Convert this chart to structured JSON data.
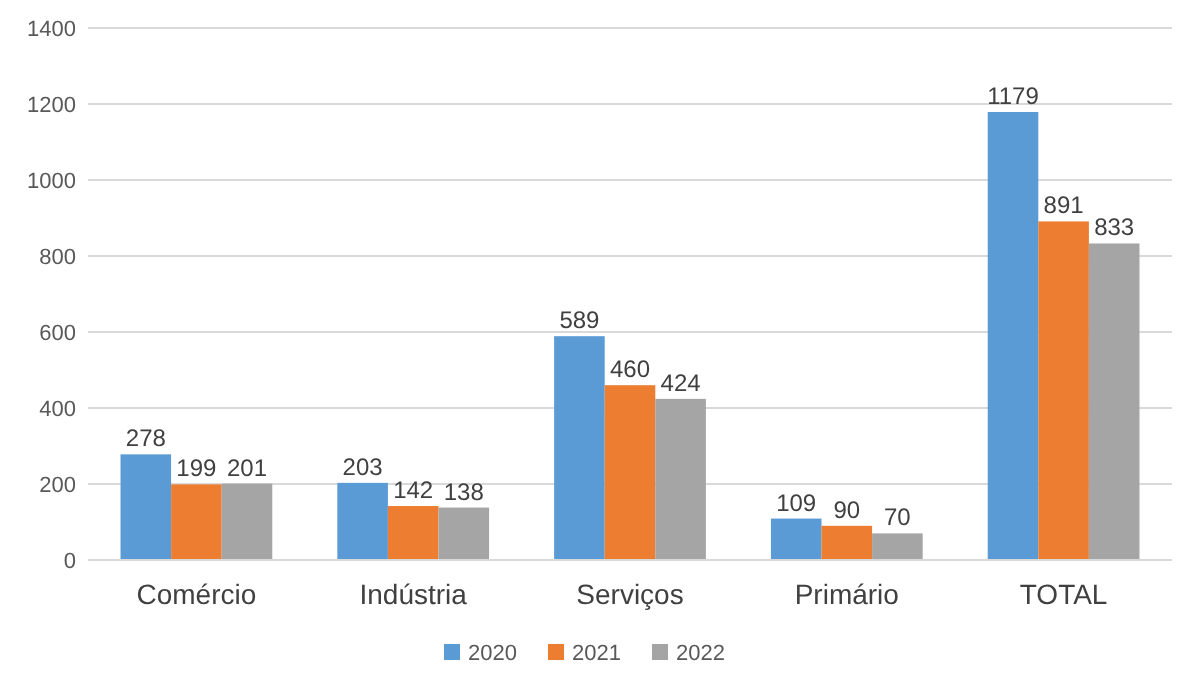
{
  "chart_data": {
    "type": "bar",
    "categories": [
      "Comércio",
      "Indústria",
      "Serviços",
      "Primário",
      "TOTAL"
    ],
    "series": [
      {
        "name": "2020",
        "color": "#5b9bd5",
        "values": [
          278,
          203,
          589,
          109,
          1179
        ]
      },
      {
        "name": "2021",
        "color": "#ed7d31",
        "values": [
          199,
          142,
          460,
          90,
          891
        ]
      },
      {
        "name": "2022",
        "color": "#a5a5a5",
        "values": [
          201,
          138,
          424,
          70,
          833
        ]
      }
    ],
    "ylim": [
      0,
      1400
    ],
    "yticks": [
      0,
      200,
      400,
      600,
      800,
      1000,
      1200,
      1400
    ],
    "grid": "y",
    "legend": "bottom",
    "data_labels": true
  }
}
